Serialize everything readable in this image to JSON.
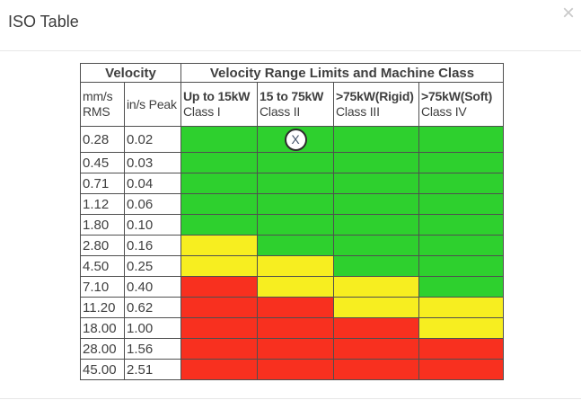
{
  "dialog": {
    "title": "ISO Table",
    "close_glyph": "×"
  },
  "table": {
    "header": {
      "velocity": "Velocity",
      "range_limits": "Velocity Range Limits and Machine Class",
      "mm_line1": "mm/s",
      "mm_line2": "RMS",
      "in_s_peak": "in/s Peak",
      "classes": [
        {
          "power": "Up to 15kW",
          "label": "Class I"
        },
        {
          "power": "15 to 75kW",
          "label": "Class II"
        },
        {
          "power": ">75kW(Rigid)",
          "label": "Class III"
        },
        {
          "power": ">75kW(Soft)",
          "label": "Class IV"
        }
      ]
    },
    "marker_label": "X",
    "colors": {
      "green": "#2ed02e",
      "yellow": "#f7ee20",
      "red": "#f8301f"
    },
    "rows": [
      {
        "mm_s": "0.28",
        "in_s": "0.02",
        "zones": [
          "green",
          "green",
          "green",
          "green"
        ],
        "marker_col": 1
      },
      {
        "mm_s": "0.45",
        "in_s": "0.03",
        "zones": [
          "green",
          "green",
          "green",
          "green"
        ]
      },
      {
        "mm_s": "0.71",
        "in_s": "0.04",
        "zones": [
          "green",
          "green",
          "green",
          "green"
        ]
      },
      {
        "mm_s": "1.12",
        "in_s": "0.06",
        "zones": [
          "green",
          "green",
          "green",
          "green"
        ]
      },
      {
        "mm_s": "1.80",
        "in_s": "0.10",
        "zones": [
          "green",
          "green",
          "green",
          "green"
        ]
      },
      {
        "mm_s": "2.80",
        "in_s": "0.16",
        "zones": [
          "yellow",
          "green",
          "green",
          "green"
        ]
      },
      {
        "mm_s": "4.50",
        "in_s": "0.25",
        "zones": [
          "yellow",
          "yellow",
          "green",
          "green"
        ]
      },
      {
        "mm_s": "7.10",
        "in_s": "0.40",
        "zones": [
          "red",
          "yellow",
          "yellow",
          "green"
        ]
      },
      {
        "mm_s": "11.20",
        "in_s": "0.62",
        "zones": [
          "red",
          "red",
          "yellow",
          "yellow"
        ]
      },
      {
        "mm_s": "18.00",
        "in_s": "1.00",
        "zones": [
          "red",
          "red",
          "red",
          "yellow"
        ]
      },
      {
        "mm_s": "28.00",
        "in_s": "1.56",
        "zones": [
          "red",
          "red",
          "red",
          "red"
        ]
      },
      {
        "mm_s": "45.00",
        "in_s": "2.51",
        "zones": [
          "red",
          "red",
          "red",
          "red"
        ]
      }
    ]
  }
}
